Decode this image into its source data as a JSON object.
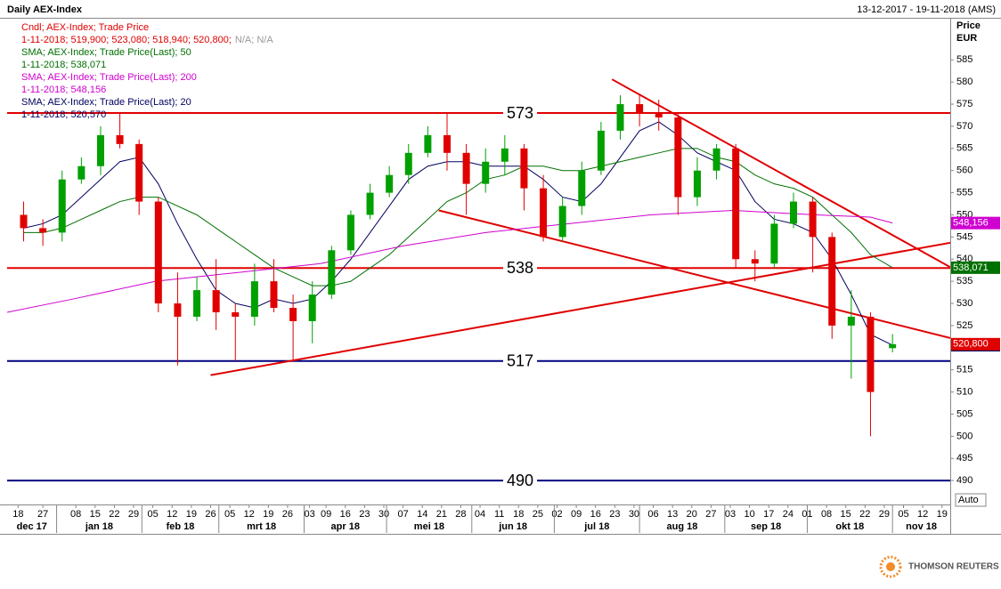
{
  "chart_data": {
    "type": "candlestick",
    "title": "Daily AEX-Index",
    "date_range": "13-12-2017 - 19-11-2018 (AMS)",
    "axis_label": "Price",
    "unit": "EUR",
    "auto_label": "Auto",
    "brand": "THOMSON REUTERS",
    "legend": [
      {
        "name": "Cndl; AEX-Index; Trade Price",
        "detail": "1-11-2018; 519,900; 523,080; 518,940; 520,800;",
        "extra": "N/A; N/A",
        "color": "#e00000"
      },
      {
        "name": "SMA; AEX-Index; Trade Price(Last);  50",
        "detail": "1-11-2018; 538,071",
        "color": "#007000"
      },
      {
        "name": "SMA; AEX-Index; Trade Price(Last);  200",
        "detail": "1-11-2018; 548,156",
        "color": "#d000d0"
      },
      {
        "name": "SMA; AEX-Index; Trade Price(Last);  20",
        "detail": "1-11-2018; 520,570",
        "color": "#000060"
      }
    ],
    "x": [
      "2017-12-20",
      "2017-12-27",
      "2018-01-03",
      "2018-01-10",
      "2018-01-17",
      "2018-01-24",
      "2018-01-31",
      "2018-02-07",
      "2018-02-14",
      "2018-02-21",
      "2018-02-28",
      "2018-03-07",
      "2018-03-14",
      "2018-03-21",
      "2018-03-28",
      "2018-04-04",
      "2018-04-11",
      "2018-04-18",
      "2018-04-25",
      "2018-05-02",
      "2018-05-09",
      "2018-05-16",
      "2018-05-23",
      "2018-05-30",
      "2018-06-06",
      "2018-06-13",
      "2018-06-20",
      "2018-06-27",
      "2018-07-04",
      "2018-07-11",
      "2018-07-18",
      "2018-07-25",
      "2018-08-01",
      "2018-08-08",
      "2018-08-15",
      "2018-08-22",
      "2018-08-29",
      "2018-09-05",
      "2018-09-12",
      "2018-09-19",
      "2018-09-26",
      "2018-10-03",
      "2018-10-10",
      "2018-10-17",
      "2018-10-24",
      "2018-11-01"
    ],
    "open": [
      550,
      547,
      546,
      558,
      561,
      568,
      566,
      553,
      530,
      527,
      533,
      528,
      527,
      535,
      529,
      526,
      532,
      542,
      550,
      555,
      559,
      564,
      568,
      564,
      557,
      562,
      565,
      556,
      545,
      552,
      560,
      569,
      575,
      573,
      572,
      554,
      560,
      565,
      540,
      539,
      548,
      553,
      545,
      525,
      527,
      519.9
    ],
    "high": [
      553,
      549,
      560,
      563,
      570,
      573,
      567,
      554,
      537,
      536,
      540,
      530,
      539,
      540,
      532,
      535,
      543,
      551,
      557,
      561,
      566,
      570,
      573,
      566,
      565,
      568,
      566,
      559,
      554,
      562,
      571,
      577,
      577,
      576,
      573,
      563,
      566,
      566,
      542,
      550,
      555,
      554,
      546,
      533,
      528,
      523.08
    ],
    "low": [
      544,
      543,
      544,
      557,
      559,
      565,
      550,
      528,
      516,
      526,
      524,
      517,
      525,
      528,
      517,
      521,
      531,
      541,
      549,
      554,
      557,
      563,
      560,
      550,
      555,
      559,
      551,
      544,
      544,
      550,
      559,
      567,
      570,
      569,
      550,
      552,
      558,
      538,
      535,
      538,
      547,
      537,
      522,
      513,
      500,
      518.94
    ],
    "close": [
      547,
      546,
      558,
      561,
      568,
      566,
      553,
      530,
      527,
      533,
      528,
      527,
      535,
      529,
      526,
      532,
      542,
      550,
      555,
      559,
      564,
      568,
      564,
      557,
      562,
      565,
      556,
      545,
      552,
      560,
      569,
      575,
      573,
      572,
      554,
      560,
      565,
      540,
      539,
      548,
      553,
      545,
      525,
      527,
      510,
      520.8
    ],
    "up_color": "#00a000",
    "down_color": "#e00000",
    "series": [
      {
        "name": "SMA 20",
        "color": "#000060",
        "values": [
          547,
          548,
          550,
          554,
          558,
          562,
          563,
          557,
          548,
          540,
          533,
          530,
          529,
          531,
          530,
          531,
          535,
          540,
          546,
          552,
          558,
          561,
          562,
          562,
          561,
          561,
          561,
          558,
          554,
          553,
          557,
          563,
          569,
          571,
          568,
          564,
          562,
          560,
          553,
          549,
          548,
          546,
          540,
          532,
          523,
          520.57
        ],
        "value_label": "520,570"
      },
      {
        "name": "SMA 50",
        "color": "#007000",
        "values": [
          546,
          546,
          547,
          549,
          551,
          553,
          554,
          554,
          552,
          550,
          547,
          544,
          541,
          538,
          536,
          534,
          534,
          535,
          538,
          541,
          545,
          549,
          553,
          555,
          558,
          559,
          561,
          561,
          560,
          560,
          561,
          562,
          563,
          564,
          565,
          565,
          563,
          562,
          559,
          557,
          556,
          554,
          550,
          546,
          541,
          538.071
        ],
        "value_label": "538,071"
      },
      {
        "name": "SMA 200",
        "color": "#d000d0",
        "x": [
          "2017-12-14",
          "2018-01-07",
          "2018-02-06",
          "2018-03-08",
          "2018-04-07",
          "2018-05-07",
          "2018-06-06",
          "2018-07-06",
          "2018-08-05",
          "2018-09-04",
          "2018-10-04",
          "2018-10-24",
          "2018-11-01"
        ],
        "values": [
          528,
          531,
          535,
          537,
          539,
          543,
          546,
          548,
          550,
          551,
          550,
          549.5,
          548.156
        ],
        "value_label": "548,156"
      }
    ],
    "last_close": {
      "value": 520.8,
      "label": "520,800"
    },
    "levels": [
      {
        "value": 573,
        "color": "#e00000"
      },
      {
        "value": 538,
        "color": "#e00000"
      },
      {
        "value": 517,
        "color": "#000080"
      },
      {
        "value": 490,
        "color": "#000080"
      }
    ],
    "trendlines": [
      {
        "x": [
          "2018-07-22",
          "2018-11-22"
        ],
        "y": [
          580.6,
          538.2
        ]
      },
      {
        "x": [
          "2018-05-20",
          "2018-11-22"
        ],
        "y": [
          551,
          522.2
        ]
      },
      {
        "x": [
          "2018-02-26",
          "2018-11-22"
        ],
        "y": [
          513.8,
          543.7
        ]
      }
    ],
    "trend_color": "#e00000",
    "xlim": [
      "2017-12-14",
      "2018-11-22"
    ],
    "ylim": [
      484.6,
      594.3
    ],
    "yticks": [
      490,
      495,
      500,
      505,
      510,
      515,
      520,
      525,
      530,
      535,
      540,
      545,
      550,
      555,
      560,
      565,
      570,
      575,
      580,
      585
    ],
    "xticks": [
      {
        "value": "2017-12-18",
        "label": "18"
      },
      {
        "value": "2017-12-27",
        "label": "27"
      },
      {
        "value": "2018-01-08",
        "label": "08"
      },
      {
        "value": "2018-01-15",
        "label": "15"
      },
      {
        "value": "2018-01-22",
        "label": "22"
      },
      {
        "value": "2018-01-29",
        "label": "29"
      },
      {
        "value": "2018-02-05",
        "label": "05"
      },
      {
        "value": "2018-02-12",
        "label": "12"
      },
      {
        "value": "2018-02-19",
        "label": "19"
      },
      {
        "value": "2018-02-26",
        "label": "26"
      },
      {
        "value": "2018-03-05",
        "label": "05"
      },
      {
        "value": "2018-03-12",
        "label": "12"
      },
      {
        "value": "2018-03-19",
        "label": "19"
      },
      {
        "value": "2018-03-26",
        "label": "26"
      },
      {
        "value": "2018-04-03",
        "label": "03"
      },
      {
        "value": "2018-04-09",
        "label": "09"
      },
      {
        "value": "2018-04-16",
        "label": "16"
      },
      {
        "value": "2018-04-23",
        "label": "23"
      },
      {
        "value": "2018-04-30",
        "label": "30"
      },
      {
        "value": "2018-05-07",
        "label": "07"
      },
      {
        "value": "2018-05-14",
        "label": "14"
      },
      {
        "value": "2018-05-21",
        "label": "21"
      },
      {
        "value": "2018-05-28",
        "label": "28"
      },
      {
        "value": "2018-06-04",
        "label": "04"
      },
      {
        "value": "2018-06-11",
        "label": "11"
      },
      {
        "value": "2018-06-18",
        "label": "18"
      },
      {
        "value": "2018-06-25",
        "label": "25"
      },
      {
        "value": "2018-07-02",
        "label": "02"
      },
      {
        "value": "2018-07-09",
        "label": "09"
      },
      {
        "value": "2018-07-16",
        "label": "16"
      },
      {
        "value": "2018-07-23",
        "label": "23"
      },
      {
        "value": "2018-07-30",
        "label": "30"
      },
      {
        "value": "2018-08-06",
        "label": "06"
      },
      {
        "value": "2018-08-13",
        "label": "13"
      },
      {
        "value": "2018-08-20",
        "label": "20"
      },
      {
        "value": "2018-08-27",
        "label": "27"
      },
      {
        "value": "2018-09-03",
        "label": "03"
      },
      {
        "value": "2018-09-10",
        "label": "10"
      },
      {
        "value": "2018-09-17",
        "label": "17"
      },
      {
        "value": "2018-09-24",
        "label": "24"
      },
      {
        "value": "2018-10-01",
        "label": "01"
      },
      {
        "value": "2018-10-08",
        "label": "08"
      },
      {
        "value": "2018-10-15",
        "label": "15"
      },
      {
        "value": "2018-10-22",
        "label": "22"
      },
      {
        "value": "2018-10-29",
        "label": "29"
      },
      {
        "value": "2018-11-05",
        "label": "05"
      },
      {
        "value": "2018-11-12",
        "label": "12"
      },
      {
        "value": "2018-11-19",
        "label": "19"
      }
    ],
    "months": [
      {
        "value": "2017-12-14",
        "label": "dec 17"
      },
      {
        "value": "2018-01-01",
        "label": "jan 18"
      },
      {
        "value": "2018-02-01",
        "label": "feb 18"
      },
      {
        "value": "2018-03-01",
        "label": "mrt 18"
      },
      {
        "value": "2018-04-01",
        "label": "apr 18"
      },
      {
        "value": "2018-05-01",
        "label": "mei 18"
      },
      {
        "value": "2018-06-01",
        "label": "jun 18"
      },
      {
        "value": "2018-07-01",
        "label": "jul 18"
      },
      {
        "value": "2018-08-01",
        "label": "aug 18"
      },
      {
        "value": "2018-09-01",
        "label": "sep 18"
      },
      {
        "value": "2018-10-01",
        "label": "okt 18"
      },
      {
        "value": "2018-11-01",
        "label": "nov 18"
      }
    ]
  }
}
